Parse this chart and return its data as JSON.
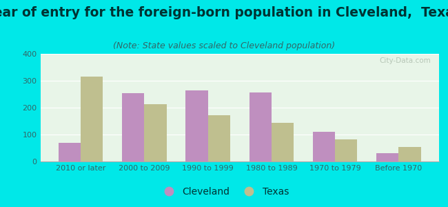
{
  "title": "Year of entry for the foreign-born population in Cleveland,  Texas",
  "subtitle": "(Note: State values scaled to Cleveland population)",
  "categories": [
    "2010 or later",
    "2000 to 2009",
    "1990 to 1999",
    "1980 to 1989",
    "1970 to 1979",
    "Before 1970"
  ],
  "cleveland_values": [
    68,
    255,
    265,
    257,
    110,
    32
  ],
  "texas_values": [
    315,
    212,
    173,
    143,
    82,
    55
  ],
  "cleveland_color": "#bf8fbf",
  "texas_color": "#bfbf8f",
  "background_outer": "#00e8e8",
  "background_inner": "#e8f5e8",
  "ylim": [
    0,
    400
  ],
  "yticks": [
    0,
    100,
    200,
    300,
    400
  ],
  "title_fontsize": 13.5,
  "subtitle_fontsize": 9,
  "legend_fontsize": 10,
  "bar_width": 0.35,
  "legend_labels": [
    "Cleveland",
    "Texas"
  ],
  "title_color": "#003333",
  "subtitle_color": "#336666",
  "tick_color": "#336666",
  "watermark": "City-Data.com"
}
